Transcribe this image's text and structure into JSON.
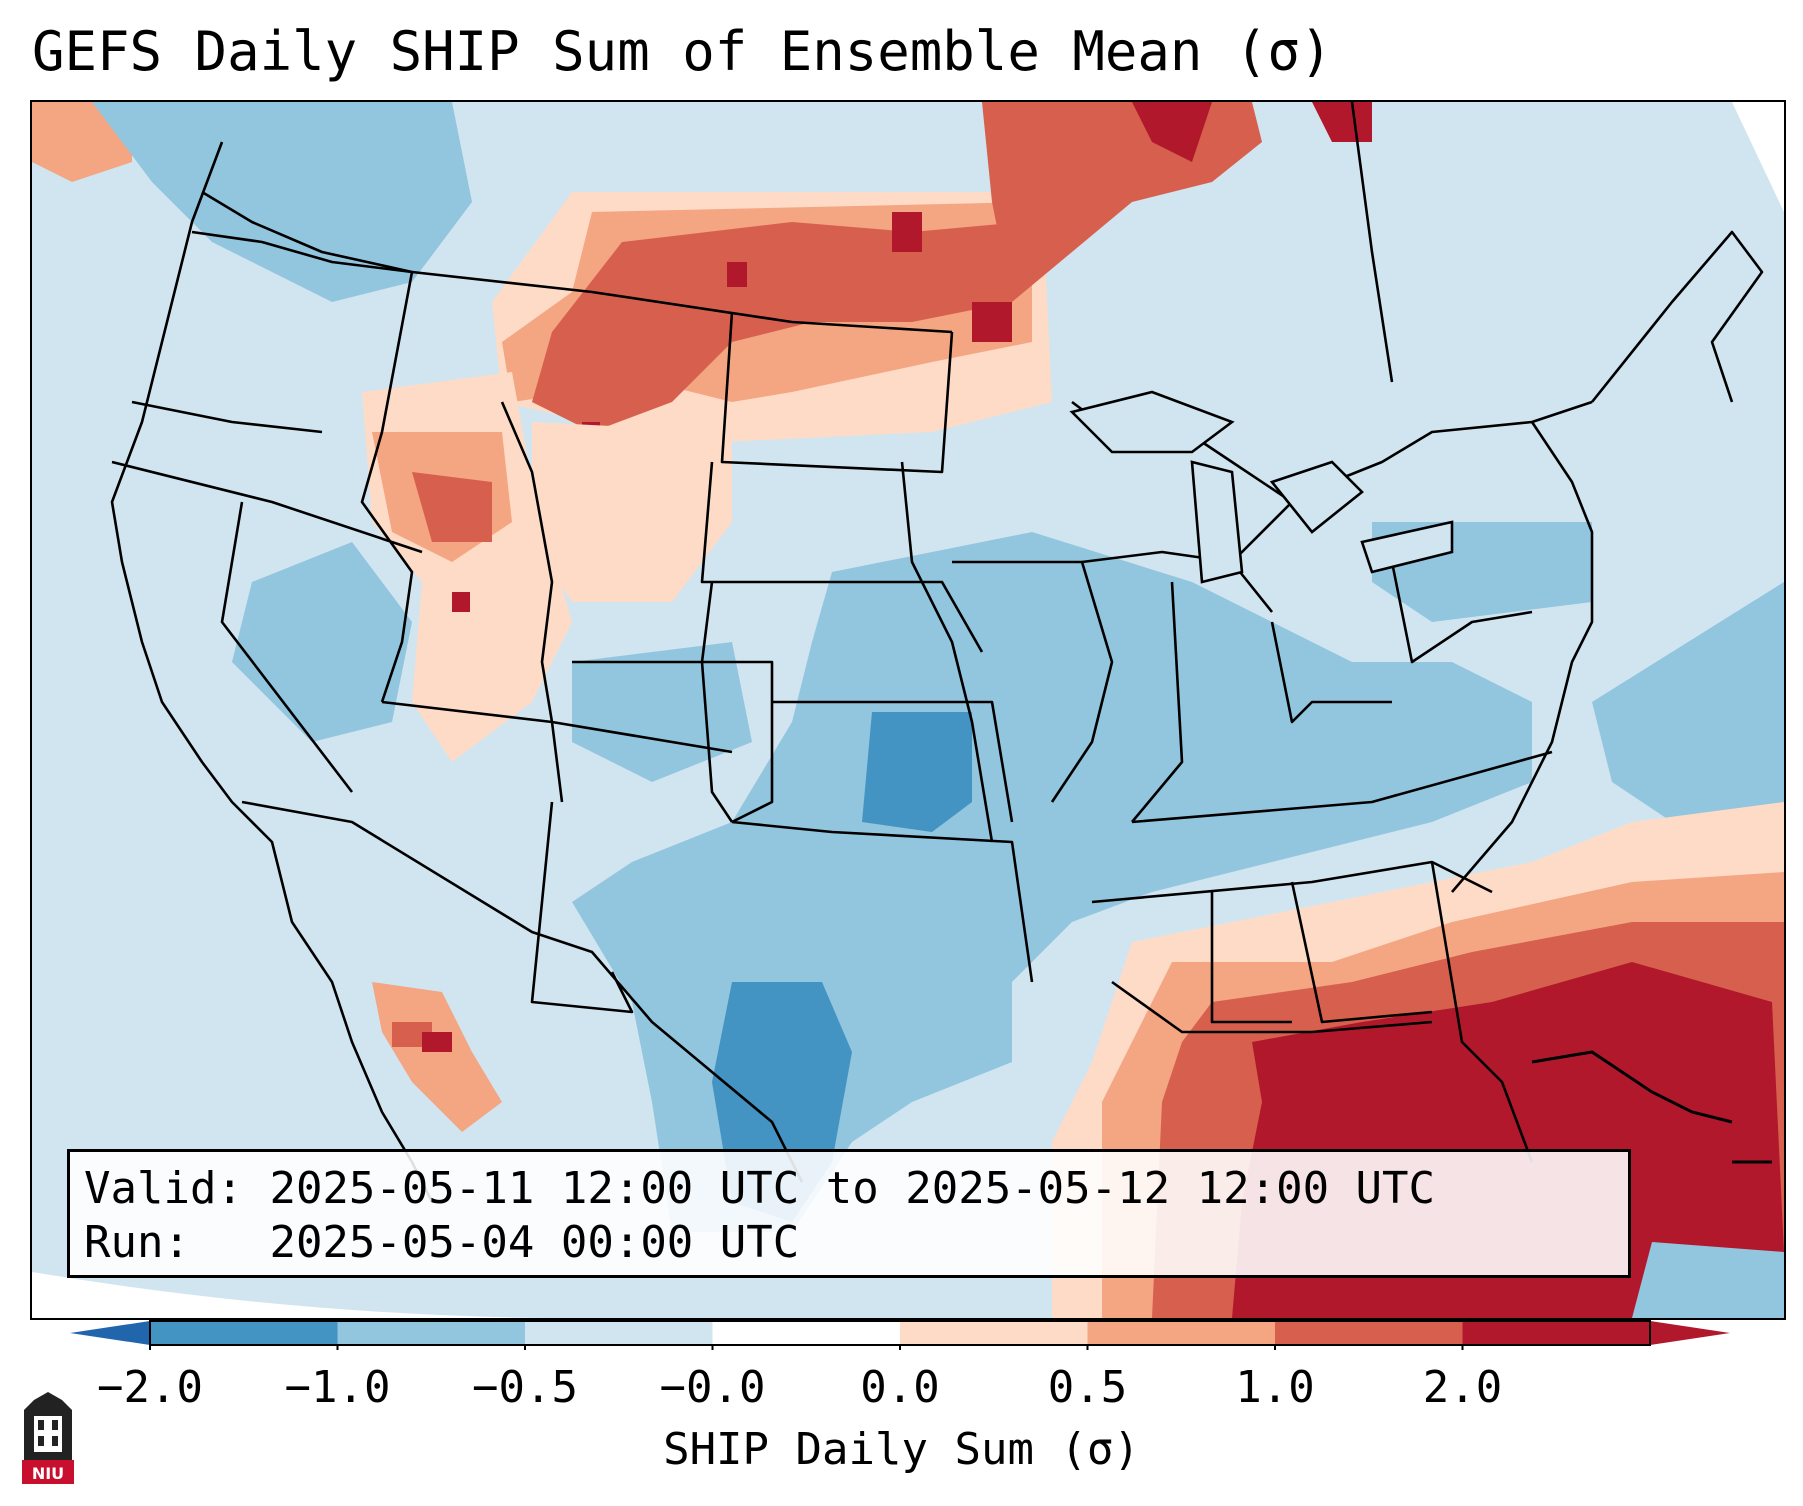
{
  "title": "GEFS Daily SHIP Sum of Ensemble Mean (σ)",
  "info": {
    "valid_label": "Valid:",
    "valid_value": "2025-05-11 12:00 UTC to 2025-05-12 12:00 UTC",
    "run_label": "Run:",
    "run_value": "2025-05-04 00:00 UTC"
  },
  "colorbar": {
    "label": "SHIP Daily Sum (σ)",
    "ticks": [
      "−2.0",
      "−1.0",
      "−0.5",
      "−0.0",
      "0.0",
      "0.5",
      "1.0",
      "2.0"
    ],
    "colors": [
      "#4393c3",
      "#92c5de",
      "#d1e5f0",
      "#ffffff",
      "#fddbc7",
      "#f4a582",
      "#d6604d",
      "#b2182b"
    ],
    "under_color": "#2166ac",
    "over_color": "#b2182b"
  },
  "logo_text": "NIU"
}
